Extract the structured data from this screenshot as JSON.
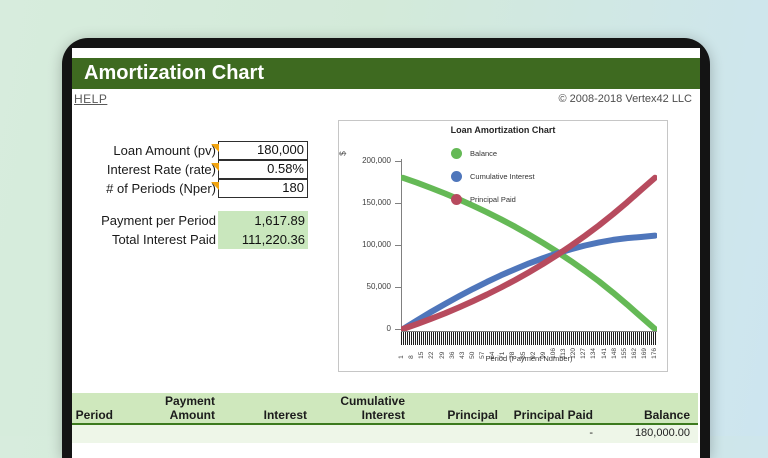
{
  "window": {
    "title": "Amortization Chart",
    "help_label": "HELP",
    "copyright": "© 2008-2018 Vertex42 LLC"
  },
  "inputs": {
    "rows": [
      {
        "label": "Loan Amount (pv)",
        "value": "180,000"
      },
      {
        "label": "Interest Rate (rate)",
        "value": "0.58%"
      },
      {
        "label": "# of Periods (Nper)",
        "value": "180"
      }
    ],
    "results": [
      {
        "label": "Payment per Period",
        "value": "1,617.89"
      },
      {
        "label": "Total Interest Paid",
        "value": "111,220.36"
      }
    ]
  },
  "chart_data": {
    "type": "line",
    "title": "Loan Amortization Chart",
    "xlabel": "Period (Payment Number)",
    "ylabel": "$",
    "ylim": [
      0,
      200000
    ],
    "grid": false,
    "legend_position": "inside-top-left",
    "x": [
      0,
      10,
      20,
      30,
      40,
      50,
      60,
      70,
      80,
      90,
      100,
      110,
      120,
      130,
      140,
      150,
      160,
      170,
      180
    ],
    "series": [
      {
        "name": "Balance",
        "color": "#65b956",
        "values": [
          180000,
          174109,
          167867,
          161255,
          154246,
          146818,
          138952,
          130623,
          121785,
          112436,
          102514,
          92022,
          80888,
          69097,
          56609,
          43363,
          29334,
          14479,
          0
        ]
      },
      {
        "name": "Cumulative Interest",
        "color": "#4f76bb",
        "values": [
          0,
          10288,
          20225,
          29792,
          38962,
          47713,
          56025,
          63875,
          71216,
          78046,
          84303,
          89990,
          95035,
          99423,
          103114,
          106047,
          108196,
          109520,
          111220
        ]
      },
      {
        "name": "Principal Paid",
        "color": "#b74b5e",
        "values": [
          0,
          5891,
          12133,
          18745,
          25754,
          33182,
          41048,
          49377,
          58215,
          67564,
          77486,
          87978,
          99112,
          110903,
          123391,
          136637,
          150666,
          165521,
          180000
        ]
      }
    ],
    "yticks": [
      {
        "v": 0,
        "label": "0"
      },
      {
        "v": 50000,
        "label": "50,000"
      },
      {
        "v": 100000,
        "label": "100,000"
      },
      {
        "v": 150000,
        "label": "150,000"
      },
      {
        "v": 200000,
        "label": "200,000"
      }
    ],
    "xtick_labels": [
      "1",
      "8",
      "15",
      "22",
      "29",
      "36",
      "43",
      "50",
      "57",
      "64",
      "71",
      "78",
      "85",
      "92",
      "99",
      "106",
      "113",
      "120",
      "127",
      "134",
      "141",
      "148",
      "155",
      "162",
      "169",
      "176"
    ]
  },
  "table": {
    "cols": [
      {
        "l1": "",
        "l2": "Period"
      },
      {
        "l1": "Payment",
        "l2": "Amount"
      },
      {
        "l1": "",
        "l2": "Interest"
      },
      {
        "l1": "Cumulative",
        "l2": "Interest"
      },
      {
        "l1": "",
        "l2": "Principal"
      },
      {
        "l1": "",
        "l2": "Principal Paid"
      },
      {
        "l1": "",
        "l2": "Balance"
      }
    ],
    "first_row": {
      "period": "",
      "payment": "",
      "interest": "",
      "cumulative": "",
      "principal": "",
      "principal_paid": "-",
      "balance": "180,000.00"
    }
  },
  "colors": {
    "titlebar_green": "#3e6a20",
    "table_header_green": "#cfe8bd",
    "result_cell_green": "#c9e7bd",
    "table_rule_green": "#3c7a1e",
    "comment_marker_orange": "#f2a40e",
    "bezel_black": "#141414"
  }
}
